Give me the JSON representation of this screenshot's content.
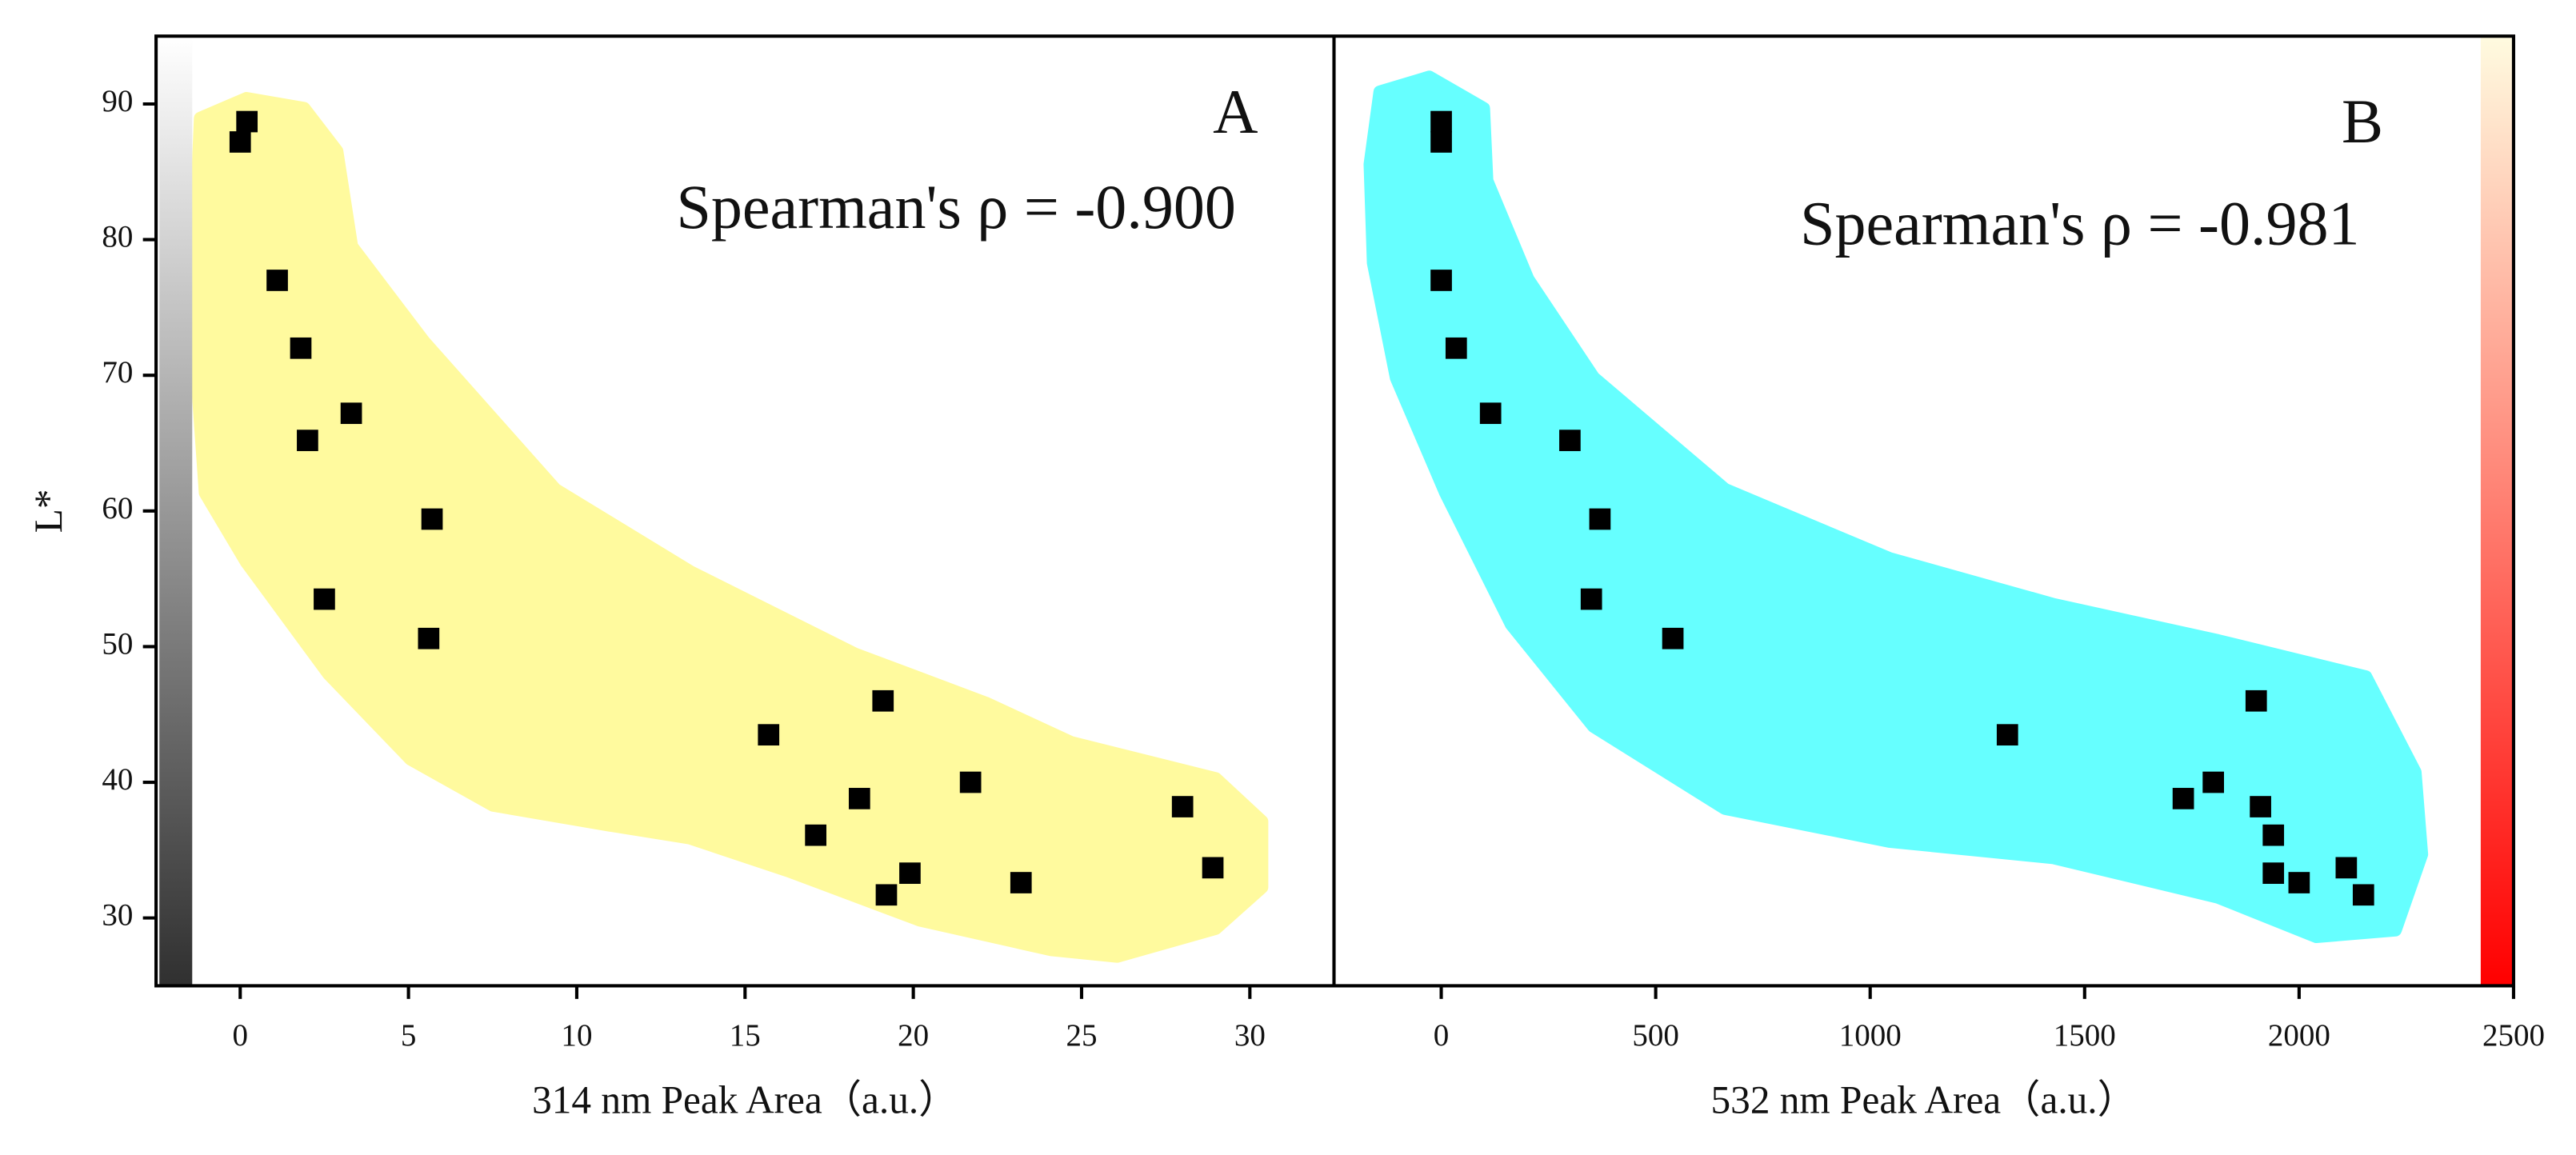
{
  "chart_data": [
    {
      "type": "scatter",
      "panel_label": "A",
      "annotation": "Spearman's ρ = -0.900",
      "xlabel": "314 nm Peak Area（a.u.）",
      "ylabel": "L*",
      "color": "#000000",
      "x": [
        0.0,
        0.2,
        1.1,
        1.8,
        2.0,
        3.3,
        5.7,
        2.5,
        5.6,
        15.7,
        19.1,
        17.1,
        18.4,
        21.7,
        19.2,
        19.9,
        23.2,
        28.0,
        28.9
      ],
      "y": [
        87.2,
        88.7,
        77.0,
        72.0,
        65.2,
        67.2,
        59.4,
        53.5,
        50.6,
        43.5,
        46.0,
        36.1,
        38.8,
        40.0,
        31.7,
        33.3,
        32.6,
        38.2,
        33.7
      ],
      "xlim": [
        -2.5,
        32.5
      ],
      "xticks": [
        0,
        5,
        10,
        15,
        20,
        25,
        30
      ],
      "ylim": [
        25,
        95
      ],
      "yticks": [
        30,
        40,
        50,
        60,
        70,
        80,
        90
      ]
    },
    {
      "type": "scatter",
      "panel_label": "B",
      "annotation": "Spearman's ρ = -0.981",
      "xlabel": "532 nm Peak Area（a.u.）",
      "color": "#000000",
      "x": [
        0,
        0,
        0,
        35,
        115,
        300,
        370,
        350,
        540,
        1320,
        1900,
        1730,
        1800,
        1910,
        1940,
        1940,
        2000,
        2110,
        2150
      ],
      "y": [
        88.7,
        87.2,
        77.0,
        72.0,
        67.2,
        65.2,
        59.4,
        53.5,
        50.6,
        43.5,
        46.0,
        38.8,
        40.0,
        38.2,
        36.1,
        33.3,
        32.6,
        33.7,
        31.7
      ],
      "xlim": [
        -250,
        2500
      ],
      "xticks": [
        0,
        500,
        1000,
        1500,
        2000,
        2500
      ],
      "ylim": [
        25,
        95
      ]
    }
  ]
}
